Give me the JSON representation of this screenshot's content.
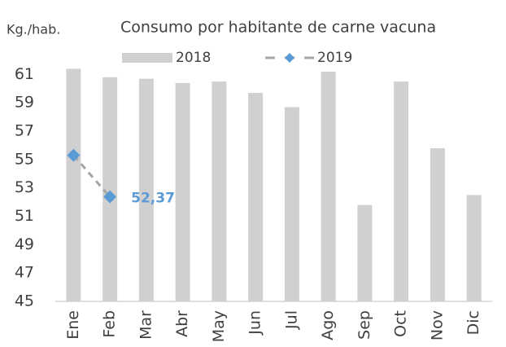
{
  "chart_data": {
    "type": "bar_line",
    "title": "Consumo por habitante de carne vacuna",
    "y_axis_label": "Kg./hab.",
    "categories": [
      "Ene",
      "Feb",
      "Mar",
      "Abr",
      "May",
      "Jun",
      "Jul",
      "Ago",
      "Sep",
      "Oct",
      "Nov",
      "Dic"
    ],
    "series": [
      {
        "name": "2018",
        "type": "bar",
        "color": "#d0d0d0",
        "values": [
          61.4,
          60.8,
          60.7,
          60.4,
          60.5,
          59.7,
          58.7,
          61.2,
          51.8,
          60.5,
          55.8,
          52.5
        ]
      },
      {
        "name": "2019",
        "type": "line",
        "color": "#5b9bd5",
        "line_color": "#a6a6a6",
        "values": [
          55.3,
          52.37,
          null,
          null,
          null,
          null,
          null,
          null,
          null,
          null,
          null,
          null
        ],
        "value_labels": [
          null,
          "52,37",
          null,
          null,
          null,
          null,
          null,
          null,
          null,
          null,
          null,
          null
        ]
      }
    ],
    "ylim": [
      45,
      62
    ],
    "yticks": [
      45,
      47,
      49,
      51,
      53,
      55,
      57,
      59,
      61
    ],
    "grid": false
  }
}
